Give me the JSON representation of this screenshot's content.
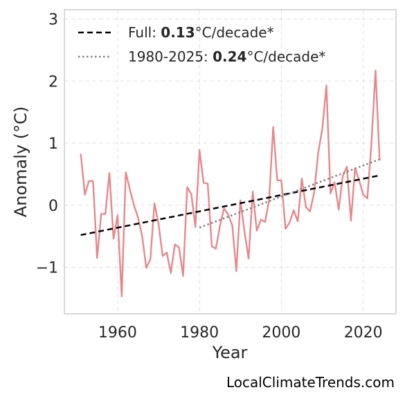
{
  "chart_data": {
    "type": "line",
    "xlabel": "Year",
    "ylabel": "Anomaly (°C)",
    "xlim": [
      1947,
      2028
    ],
    "ylim": [
      -1.75,
      3.15
    ],
    "xticks": [
      1960,
      1980,
      2000,
      2020
    ],
    "xtick_labels": [
      "1960",
      "1980",
      "2000",
      "2020"
    ],
    "yticks": [
      -1,
      0,
      1,
      2,
      3
    ],
    "ytick_labels": [
      "−1",
      "0",
      "1",
      "2",
      "3"
    ],
    "grid": true,
    "legend_position": "top-left",
    "series": [
      {
        "color": "#e8878a",
        "x": [
          1951,
          1952,
          1953,
          1954,
          1955,
          1956,
          1957,
          1958,
          1959,
          1960,
          1961,
          1962,
          1963,
          1964,
          1965,
          1966,
          1967,
          1968,
          1969,
          1970,
          1971,
          1972,
          1973,
          1974,
          1975,
          1976,
          1977,
          1978,
          1979,
          1980,
          1981,
          1982,
          1983,
          1984,
          1985,
          1986,
          1987,
          1988,
          1989,
          1990,
          1991,
          1992,
          1993,
          1994,
          1995,
          1996,
          1997,
          1998,
          1999,
          2000,
          2001,
          2002,
          2003,
          2004,
          2005,
          2006,
          2007,
          2008,
          2009,
          2010,
          2011,
          2012,
          2013,
          2014,
          2015,
          2016,
          2017,
          2018,
          2019,
          2020,
          2021,
          2022,
          2023,
          2024
        ],
        "y": [
          0.83,
          0.17,
          0.39,
          0.39,
          -0.85,
          -0.14,
          -0.14,
          0.52,
          -0.54,
          -0.16,
          -1.47,
          0.53,
          0.25,
          0.0,
          -0.2,
          -0.5,
          -1.01,
          -0.87,
          0.03,
          -0.3,
          -0.82,
          -0.76,
          -1.09,
          -0.63,
          -0.68,
          -1.14,
          0.29,
          0.18,
          -0.35,
          0.89,
          0.36,
          0.35,
          -0.66,
          -0.7,
          -0.33,
          -0.05,
          -0.15,
          -0.32,
          -1.06,
          0.08,
          -0.43,
          -0.86,
          0.22,
          -0.41,
          -0.23,
          -0.27,
          0.08,
          1.26,
          0.4,
          0.4,
          -0.38,
          -0.28,
          -0.08,
          -0.26,
          0.43,
          -0.03,
          -0.1,
          0.2,
          0.85,
          1.23,
          1.93,
          0.19,
          0.37,
          -0.07,
          0.47,
          0.62,
          -0.25,
          0.6,
          0.4,
          0.17,
          0.11,
          1.0,
          2.17,
          0.72
        ]
      },
      {
        "name": "Full: ",
        "rate": "0.13",
        "unit": "°C/decade*",
        "color": "#000000",
        "style": "dashed",
        "x": [
          1951,
          2024
        ],
        "y": [
          -0.48,
          0.48
        ]
      },
      {
        "name": "1980-2025: ",
        "rate": "0.24",
        "unit": "°C/decade*",
        "color": "#808080",
        "style": "dotted",
        "x": [
          1980,
          2024
        ],
        "y": [
          -0.36,
          0.74
        ]
      }
    ]
  },
  "watermark": "LocalClimateTrends.com"
}
